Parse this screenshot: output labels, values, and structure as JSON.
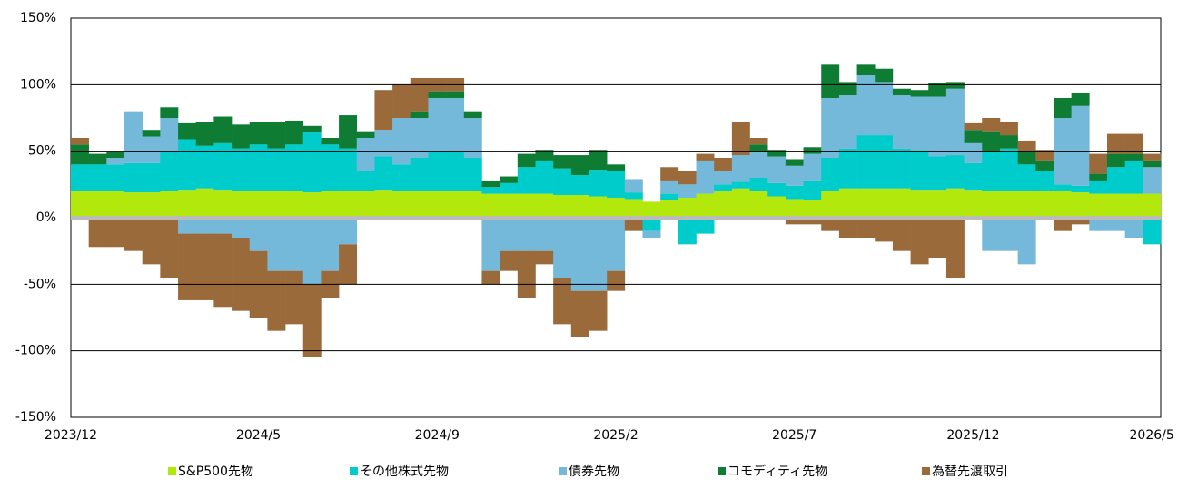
{
  "chart_data": {
    "type": "stacked_bar",
    "categories": [
      "2023/12",
      null,
      null,
      null,
      null,
      null,
      null,
      null,
      null,
      null,
      "2024/5",
      null,
      null,
      null,
      null,
      null,
      null,
      null,
      null,
      null,
      "2024/9",
      null,
      null,
      null,
      null,
      null,
      null,
      null,
      null,
      null,
      "2025/2",
      null,
      null,
      null,
      null,
      null,
      null,
      null,
      null,
      null,
      "2025/7",
      null,
      null,
      null,
      null,
      null,
      null,
      null,
      null,
      null,
      "2025/12",
      null,
      null,
      null,
      null,
      null,
      null,
      null,
      null,
      null,
      "2026/5"
    ],
    "series": [
      {
        "name": "S&P500先物",
        "color": "#b2e80c",
        "values": [
          20,
          20,
          20,
          19,
          19,
          20,
          21,
          22,
          21,
          20,
          20,
          20,
          20,
          19,
          20,
          20,
          20,
          21,
          20,
          20,
          20,
          20,
          20,
          18,
          18,
          18,
          18,
          17,
          17,
          16,
          15,
          14,
          12,
          13,
          15,
          18,
          20,
          22,
          20,
          16,
          14,
          13,
          20,
          22,
          22,
          22,
          22,
          21,
          21,
          22,
          21,
          20,
          20,
          20,
          20,
          20,
          19,
          18,
          18,
          18,
          18
        ]
      },
      {
        "name": "その他株式先物",
        "color": "#00cccc",
        "values": [
          20,
          20,
          20,
          22,
          22,
          30,
          38,
          32,
          35,
          32,
          35,
          32,
          35,
          45,
          35,
          32,
          15,
          25,
          20,
          25,
          30,
          30,
          25,
          5,
          8,
          20,
          25,
          20,
          15,
          20,
          20,
          5,
          -10,
          5,
          -20,
          -12,
          5,
          5,
          10,
          10,
          10,
          15,
          25,
          30,
          40,
          40,
          30,
          30,
          25,
          25,
          20,
          30,
          32,
          20,
          15,
          5,
          5,
          10,
          20,
          25,
          -20
        ]
      },
      {
        "name": "債券先物",
        "color": "#74b8da",
        "values": [
          0,
          0,
          5,
          39,
          20,
          25,
          -12,
          -12,
          -12,
          -15,
          -25,
          -40,
          -40,
          -50,
          -40,
          -20,
          25,
          20,
          35,
          30,
          40,
          40,
          30,
          -40,
          -25,
          -25,
          -25,
          -45,
          -55,
          -55,
          -40,
          10,
          -5,
          10,
          10,
          25,
          10,
          20,
          20,
          20,
          15,
          20,
          45,
          40,
          45,
          40,
          40,
          40,
          45,
          50,
          15,
          -25,
          -25,
          -35,
          0,
          50,
          60,
          -10,
          -10,
          -15,
          20
        ]
      },
      {
        "name": "コモディティ先物",
        "color": "#0e7d33",
        "values": [
          15,
          8,
          5,
          0,
          5,
          8,
          12,
          18,
          20,
          18,
          17,
          20,
          18,
          5,
          5,
          25,
          5,
          0,
          0,
          5,
          5,
          5,
          5,
          5,
          5,
          10,
          8,
          10,
          15,
          15,
          5,
          0,
          0,
          0,
          0,
          0,
          0,
          0,
          5,
          5,
          5,
          5,
          25,
          10,
          8,
          10,
          5,
          5,
          10,
          5,
          10,
          15,
          10,
          10,
          8,
          15,
          10,
          5,
          10,
          5,
          5
        ]
      },
      {
        "name": "為替先渡取引",
        "color": "#9b6a3a",
        "values": [
          5,
          -22,
          -22,
          -25,
          -35,
          -45,
          -50,
          -50,
          -55,
          -55,
          -50,
          -45,
          -40,
          -55,
          -20,
          -30,
          0,
          30,
          25,
          25,
          10,
          10,
          0,
          -10,
          -15,
          -35,
          -10,
          -35,
          -35,
          -30,
          -15,
          -10,
          0,
          10,
          10,
          5,
          10,
          25,
          5,
          0,
          -5,
          -5,
          -10,
          -15,
          -15,
          -18,
          -25,
          -35,
          -30,
          -45,
          5,
          10,
          10,
          8,
          8,
          -10,
          -5,
          15,
          15,
          15,
          5
        ]
      }
    ],
    "ylim": [
      -150,
      150
    ],
    "yticks": [
      {
        "value": -150,
        "label": "-150%"
      },
      {
        "value": -100,
        "label": "-100%"
      },
      {
        "value": -50,
        "label": "-50%"
      },
      {
        "value": 0,
        "label": "0%"
      },
      {
        "value": 50,
        "label": "50%"
      },
      {
        "value": 100,
        "label": "100%"
      },
      {
        "value": 150,
        "label": "150%"
      }
    ],
    "grid": true
  }
}
